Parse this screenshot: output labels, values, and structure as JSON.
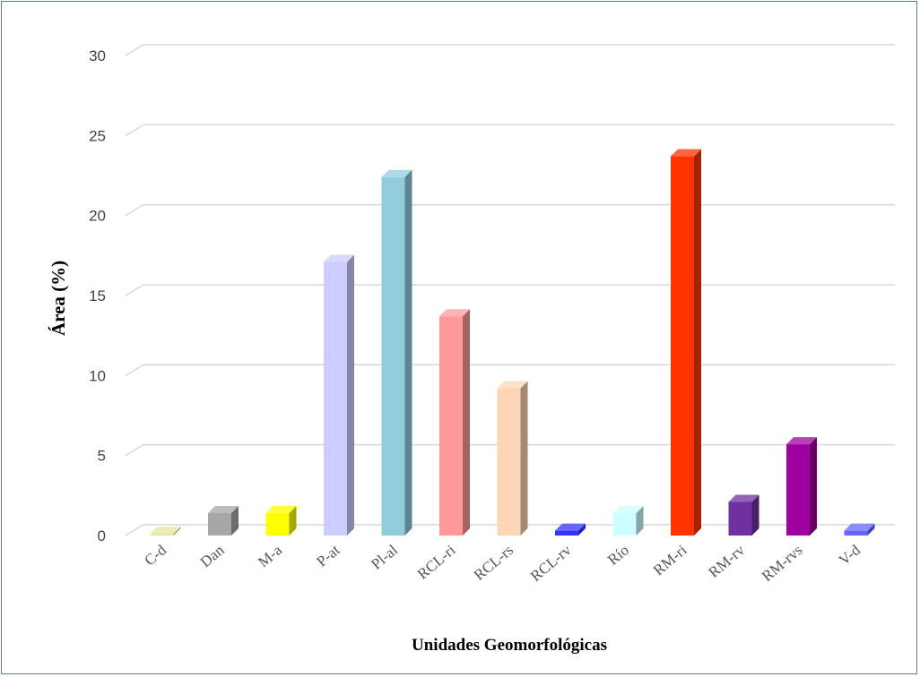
{
  "chart_data": {
    "type": "bar",
    "style": "3d",
    "ylabel": "Área (%)",
    "xlabel": "Unidades Geomorfológicas",
    "ylim": [
      0,
      30
    ],
    "yticks": [
      0,
      5,
      10,
      15,
      20,
      25,
      30
    ],
    "grid": true,
    "categories": [
      "C-d",
      "Dan",
      "M-a",
      "P-at",
      "Pl-al",
      "RCL-ri",
      "RCL-rs",
      "RCL-rv",
      "Río",
      "RM-ri",
      "RM-rv",
      "RM-rvs",
      "V-d"
    ],
    "values": [
      0.1,
      1.4,
      1.4,
      17.1,
      22.4,
      13.7,
      9.2,
      0.3,
      1.4,
      23.7,
      2.1,
      5.7,
      0.3
    ],
    "colors": [
      "#e4e49a",
      "#a6a6a6",
      "#ffff00",
      "#ccccff",
      "#92cddc",
      "#ff9999",
      "#fcd5b5",
      "#3333ff",
      "#ccffff",
      "#ff3300",
      "#7030a0",
      "#a000a0",
      "#6666ff"
    ]
  }
}
